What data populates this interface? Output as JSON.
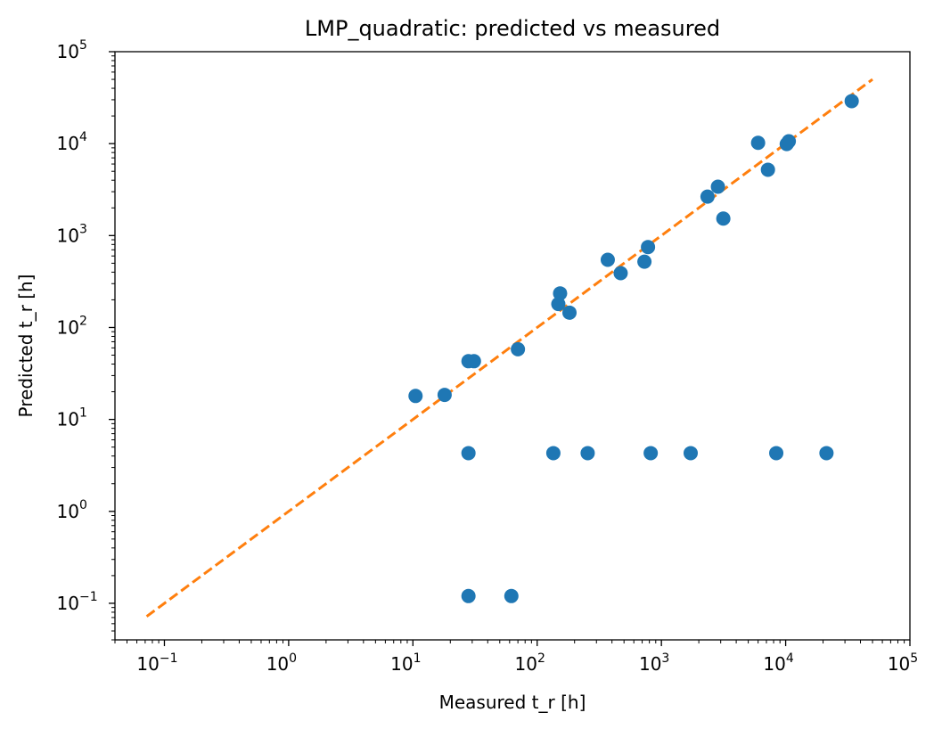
{
  "chart_data": {
    "type": "scatter",
    "title": "LMP_quadratic: predicted vs measured",
    "xlabel": "Measured t_r [h]",
    "ylabel": "Predicted t_r [h]",
    "xscale": "log",
    "yscale": "log",
    "xlim": [
      0.04,
      100000
    ],
    "ylim": [
      0.04,
      100000
    ],
    "x_ticks": [
      "10",
      "10",
      "10",
      "10",
      "10",
      "10",
      "10"
    ],
    "x_tick_exponents": [
      "−1",
      "0",
      "1",
      "2",
      "3",
      "4",
      "5"
    ],
    "y_ticks": [
      "10",
      "10",
      "10",
      "10",
      "10",
      "10",
      "10"
    ],
    "y_tick_exponents": [
      "−1",
      "0",
      "1",
      "2",
      "3",
      "4",
      "5"
    ],
    "grid": false,
    "colors": {
      "points": "#1f77b4",
      "reference": "#ff7f0e"
    },
    "series": [
      {
        "kind": "scatter",
        "x": [
          10.5,
          18,
          28,
          31,
          70,
          148,
          153,
          182,
          370,
          470,
          730,
          780,
          2350,
          2850,
          3150,
          6000,
          7200,
          10200,
          10600,
          34000,
          28,
          135,
          255,
          820,
          1720,
          8400,
          21300,
          28,
          62
        ],
        "y": [
          18,
          18.5,
          43,
          43,
          58,
          180,
          235,
          145,
          545,
          390,
          520,
          750,
          2650,
          3400,
          1530,
          10200,
          5200,
          9900,
          10600,
          29000,
          4.3,
          4.3,
          4.3,
          4.3,
          4.3,
          4.3,
          4.3,
          0.12,
          0.12
        ]
      },
      {
        "kind": "line",
        "style": "dashed",
        "x": [
          0.072,
          50000
        ],
        "y": [
          0.072,
          50000
        ]
      }
    ]
  }
}
